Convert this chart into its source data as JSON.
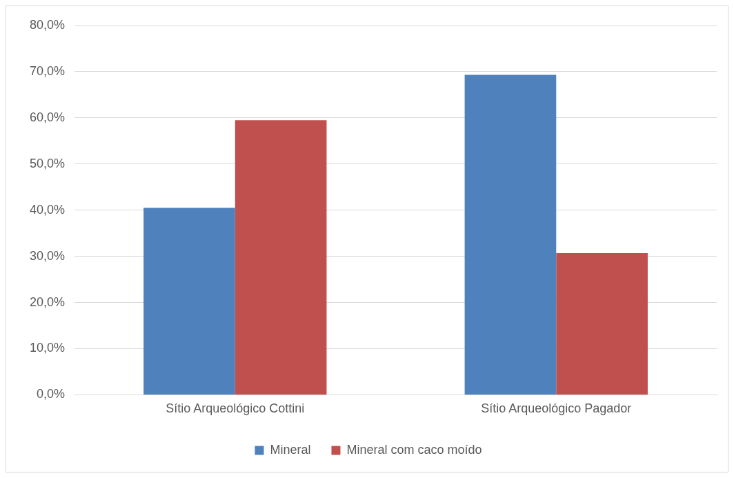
{
  "chart_data": {
    "type": "bar",
    "categories": [
      "Sítio Arqueológico Cottini",
      "Sítio Arqueológico Pagador"
    ],
    "series": [
      {
        "name": "Mineral",
        "color": "#4f81bd",
        "values": [
          40.5,
          69.3
        ]
      },
      {
        "name": "Mineral com caco moído",
        "color": "#c0504d",
        "values": [
          59.5,
          30.7
        ]
      }
    ],
    "ylim": [
      0,
      80
    ],
    "yticks": [
      {
        "value": 0,
        "label": "0,0%"
      },
      {
        "value": 10,
        "label": "10,0%"
      },
      {
        "value": 20,
        "label": "20,0%"
      },
      {
        "value": 30,
        "label": "30,0%"
      },
      {
        "value": 40,
        "label": "40,0%"
      },
      {
        "value": 50,
        "label": "50,0%"
      },
      {
        "value": 60,
        "label": "60,0%"
      },
      {
        "value": 70,
        "label": "70,0%"
      },
      {
        "value": 80,
        "label": "80,0%"
      }
    ],
    "grid": "y",
    "legend": "bottom"
  }
}
